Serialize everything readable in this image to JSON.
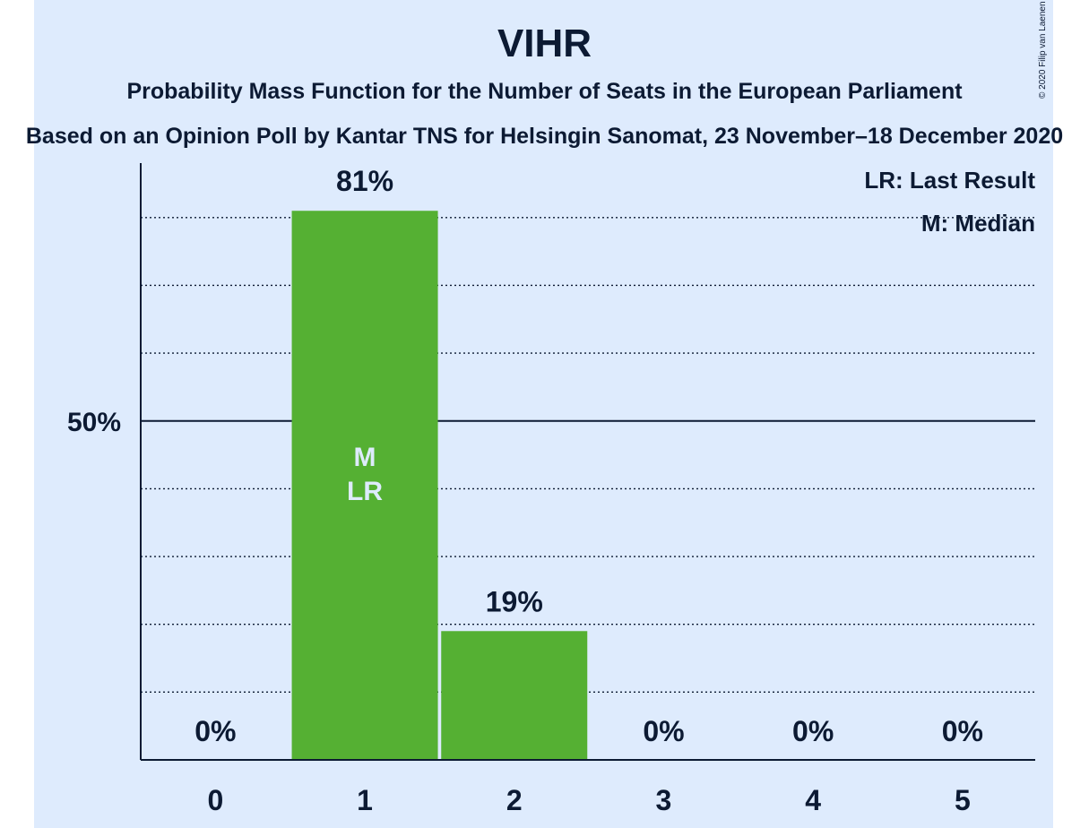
{
  "title": "VIHR",
  "subtitle": "Probability Mass Function for the Number of Seats in the European Parliament",
  "subtitle2": "Based on an Opinion Poll by Kantar TNS for Helsingin Sanomat, 23 November–18 December 2020",
  "copyright": "© 2020 Filip van Laenen",
  "colors": {
    "background": "#deebfd",
    "bar": "#55b033",
    "text": "#0c1a33",
    "inbar_text": "#deebfd"
  },
  "chart_data": {
    "type": "bar",
    "categories": [
      "0",
      "1",
      "2",
      "3",
      "4",
      "5"
    ],
    "values": [
      0,
      81,
      19,
      0,
      0,
      0
    ],
    "value_labels": [
      "0%",
      "81%",
      "19%",
      "0%",
      "0%",
      "0%"
    ],
    "ylim": [
      0,
      88
    ],
    "yticks": [
      {
        "value": 50,
        "label": "50%"
      }
    ],
    "grid_minor_step": 10,
    "grid": true,
    "bar_annotations": [
      {
        "category": "1",
        "lines": [
          "M",
          "LR"
        ]
      }
    ],
    "legend": {
      "placement": "top-right",
      "entries": [
        "LR: Last Result",
        "M: Median"
      ]
    }
  }
}
